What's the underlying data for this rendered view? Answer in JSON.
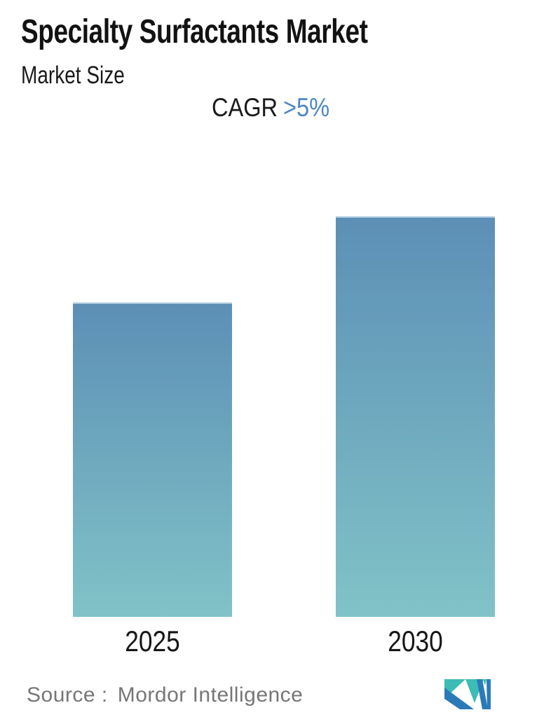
{
  "header": {
    "title": "Specialty Surfactants Market",
    "subtitle": "Market Size"
  },
  "cagr": {
    "label": "CAGR",
    "value": ">5%"
  },
  "chart_data": {
    "type": "bar",
    "title": "Specialty Surfactants Market",
    "subtitle": "Market Size",
    "categories": [
      "2025",
      "2030"
    ],
    "values": [
      78.5,
      100
    ],
    "value_scale": "relative, 2030 bar = 100 (no numeric axis shown)",
    "annotations": [
      "CAGR >5%"
    ],
    "xlabel": "",
    "ylabel": "",
    "ylim": [
      0,
      100
    ],
    "grid": false,
    "legend": false,
    "bar_gradient_top": "#5d8fb6",
    "bar_gradient_bottom": "#80c3c7"
  },
  "source": {
    "label": "Source :",
    "value": "Mordor Intelligence"
  },
  "logo": {
    "icon": "mordor-intelligence-logo",
    "teal": "#3bbcb4",
    "blue": "#2b7ab8"
  },
  "colors": {
    "cagr_accent": "#4c87c1",
    "title_text": "#121212",
    "source_text": "#767676",
    "background": "#ffffff"
  }
}
